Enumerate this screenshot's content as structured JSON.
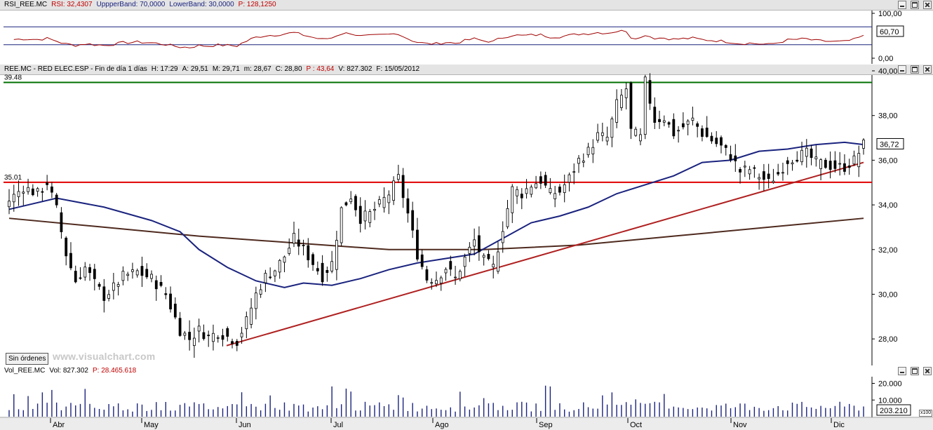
{
  "rsi_pane": {
    "header": {
      "name": "RSI_REE.MC",
      "rsi": "RSI: 32,4307",
      "upper": "UppperBand: 70,0000",
      "lower": "LowerBand: 30,0000",
      "p": "P: 128,1250"
    },
    "axis_labels": [
      "100,00",
      "0,00"
    ],
    "current_value": "60,70"
  },
  "price_pane": {
    "header": {
      "name": "REE.MC - RED ELEC.ESP - Fin de día 1 días",
      "h": "H: 17:29",
      "a": "A: 29,51",
      "m": "M: 29,71",
      "mn": "m: 28,67",
      "c": "C: 28,80",
      "p": "P : 43,64",
      "v": "V: 827.302",
      "f": "F: 15/05/2012"
    },
    "axis_labels": [
      "40,00",
      "38,00",
      "36,00",
      "34,00",
      "32,00",
      "30,00",
      "28,00"
    ],
    "current_value": "36,72",
    "line_labels": [
      "39.48",
      "35.01"
    ],
    "sin_ordenes": "Sin órdenes",
    "watermark": "www.visualchart.com"
  },
  "vol_pane": {
    "header": {
      "name": "Vol_REE.MC",
      "v": "Vol: 827.302",
      "p": "P: 28.465.618"
    },
    "axis_labels": [
      "20.000",
      "10.000"
    ],
    "current_value": "203.210",
    "multiplier": "x100"
  },
  "months": [
    "Abr",
    "May",
    "Jun",
    "Jul",
    "Ago",
    "Sep",
    "Oct",
    "Nov",
    "Dic"
  ],
  "colors": {
    "up_candle": "#ffffff",
    "down_candle": "#000000",
    "ma_short": "#1a237e",
    "ma_long": "#4e2a1e",
    "support": "#e00000",
    "resistance": "#007000",
    "trendline": "#b02020",
    "rsi": "#a00000",
    "volume": "#1a237e"
  },
  "chart_data": {
    "type": "candlestick",
    "ylim": [
      27,
      40
    ],
    "horizontal_lines": [
      {
        "value": 39.48,
        "label": "39.48"
      },
      {
        "value": 35.01,
        "label": "35.01"
      }
    ],
    "trendline": {
      "from": {
        "day": 0,
        "value": 27.7
      },
      "to": {
        "day": 180,
        "value": 35.9
      }
    },
    "anchors": [
      [
        0,
        34.2
      ],
      [
        3,
        34.8
      ],
      [
        6,
        34.5
      ],
      [
        8,
        35.0
      ],
      [
        10,
        33.8
      ],
      [
        12,
        31.8
      ],
      [
        14,
        30.6
      ],
      [
        16,
        31.2
      ],
      [
        18,
        30.5
      ],
      [
        20,
        29.9
      ],
      [
        22,
        30.3
      ],
      [
        24,
        30.8
      ],
      [
        27,
        31.0
      ],
      [
        30,
        30.7
      ],
      [
        33,
        30.0
      ],
      [
        36,
        28.4
      ],
      [
        38,
        28.0
      ],
      [
        40,
        28.4
      ],
      [
        42,
        28.1
      ],
      [
        44,
        28.3
      ],
      [
        46,
        28.1
      ],
      [
        48,
        27.9
      ],
      [
        50,
        28.8
      ],
      [
        52,
        30.0
      ],
      [
        54,
        30.8
      ],
      [
        56,
        31.1
      ],
      [
        58,
        31.7
      ],
      [
        60,
        32.5
      ],
      [
        62,
        32.0
      ],
      [
        64,
        31.4
      ],
      [
        66,
        30.8
      ],
      [
        68,
        31.4
      ],
      [
        70,
        33.8
      ],
      [
        72,
        34.4
      ],
      [
        74,
        33.4
      ],
      [
        76,
        33.6
      ],
      [
        78,
        34.0
      ],
      [
        80,
        34.5
      ],
      [
        82,
        35.2
      ],
      [
        84,
        33.6
      ],
      [
        86,
        31.8
      ],
      [
        88,
        30.7
      ],
      [
        90,
        30.7
      ],
      [
        92,
        31.2
      ],
      [
        94,
        30.7
      ],
      [
        96,
        31.6
      ],
      [
        98,
        32.4
      ],
      [
        100,
        31.5
      ],
      [
        102,
        31.2
      ],
      [
        104,
        33.0
      ],
      [
        106,
        34.7
      ],
      [
        108,
        34.5
      ],
      [
        110,
        34.9
      ],
      [
        112,
        35.1
      ],
      [
        114,
        34.5
      ],
      [
        116,
        34.6
      ],
      [
        118,
        35.2
      ],
      [
        120,
        36.0
      ],
      [
        122,
        36.4
      ],
      [
        124,
        37.1
      ],
      [
        126,
        37.0
      ],
      [
        128,
        38.5
      ],
      [
        130,
        39.2
      ],
      [
        131,
        37.3
      ],
      [
        133,
        37.0
      ],
      [
        134,
        39.5
      ],
      [
        136,
        37.8
      ],
      [
        138,
        37.9
      ],
      [
        140,
        37.2
      ],
      [
        142,
        37.5
      ],
      [
        144,
        37.8
      ],
      [
        146,
        37.2
      ],
      [
        148,
        36.9
      ],
      [
        150,
        36.6
      ],
      [
        152,
        36.2
      ],
      [
        154,
        35.5
      ],
      [
        156,
        35.6
      ],
      [
        158,
        35.3
      ],
      [
        160,
        35.0
      ],
      [
        162,
        35.4
      ],
      [
        164,
        36.0
      ],
      [
        166,
        36.2
      ],
      [
        168,
        36.3
      ],
      [
        170,
        35.9
      ],
      [
        172,
        35.8
      ],
      [
        174,
        35.7
      ],
      [
        176,
        35.7
      ],
      [
        178,
        36.0
      ],
      [
        180,
        36.7
      ]
    ],
    "ma_short_points": [
      [
        0,
        33.8
      ],
      [
        10,
        34.3
      ],
      [
        20,
        33.9
      ],
      [
        30,
        33.3
      ],
      [
        36,
        32.8
      ],
      [
        40,
        32.0
      ],
      [
        46,
        31.2
      ],
      [
        52,
        30.6
      ],
      [
        58,
        30.3
      ],
      [
        62,
        30.5
      ],
      [
        68,
        30.4
      ],
      [
        74,
        30.7
      ],
      [
        80,
        31.1
      ],
      [
        86,
        31.4
      ],
      [
        92,
        31.6
      ],
      [
        98,
        31.8
      ],
      [
        104,
        32.5
      ],
      [
        110,
        33.2
      ],
      [
        116,
        33.5
      ],
      [
        122,
        33.9
      ],
      [
        128,
        34.5
      ],
      [
        134,
        34.9
      ],
      [
        140,
        35.3
      ],
      [
        146,
        35.9
      ],
      [
        152,
        36.0
      ],
      [
        158,
        36.4
      ],
      [
        164,
        36.5
      ],
      [
        170,
        36.7
      ],
      [
        176,
        36.8
      ],
      [
        180,
        36.7
      ]
    ],
    "ma_long_points": [
      [
        0,
        33.4
      ],
      [
        20,
        33.0
      ],
      [
        40,
        32.6
      ],
      [
        60,
        32.3
      ],
      [
        80,
        32.0
      ],
      [
        100,
        32.0
      ],
      [
        120,
        32.2
      ],
      [
        140,
        32.6
      ],
      [
        160,
        33.0
      ],
      [
        180,
        33.4
      ]
    ],
    "rsi": {
      "ylim": [
        0,
        100
      ],
      "upper": 70,
      "lower": 30
    },
    "volume": {
      "ylim": [
        0,
        24000
      ]
    }
  }
}
